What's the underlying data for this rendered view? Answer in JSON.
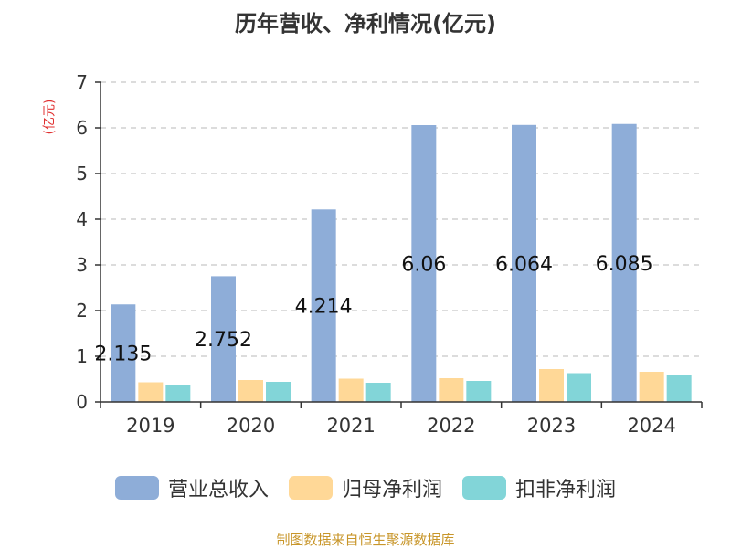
{
  "chart_data": {
    "type": "bar",
    "title": "历年营收、净利情况(亿元)",
    "unit_label": "(亿元)",
    "categories": [
      "2019",
      "2020",
      "2021",
      "2022",
      "2023",
      "2024"
    ],
    "ylim": [
      0,
      7
    ],
    "yticks": [
      0,
      1,
      2,
      3,
      4,
      5,
      6,
      7
    ],
    "grid": true,
    "legend_position": "bottom",
    "series": [
      {
        "name": "营业总收入",
        "color": "#8eadd8",
        "values": [
          2.135,
          2.752,
          4.214,
          6.06,
          6.064,
          6.085
        ],
        "labels": [
          "2.135",
          "2.752",
          "4.214",
          "6.06",
          "6.064",
          "6.085"
        ]
      },
      {
        "name": "归母净利润",
        "color": "#ffd897",
        "values": [
          0.43,
          0.48,
          0.51,
          0.52,
          0.72,
          0.66
        ]
      },
      {
        "name": "扣非净利润",
        "color": "#82d5d8",
        "values": [
          0.38,
          0.44,
          0.42,
          0.46,
          0.63,
          0.58
        ]
      }
    ]
  },
  "source": "制图数据来自恒生聚源数据库"
}
